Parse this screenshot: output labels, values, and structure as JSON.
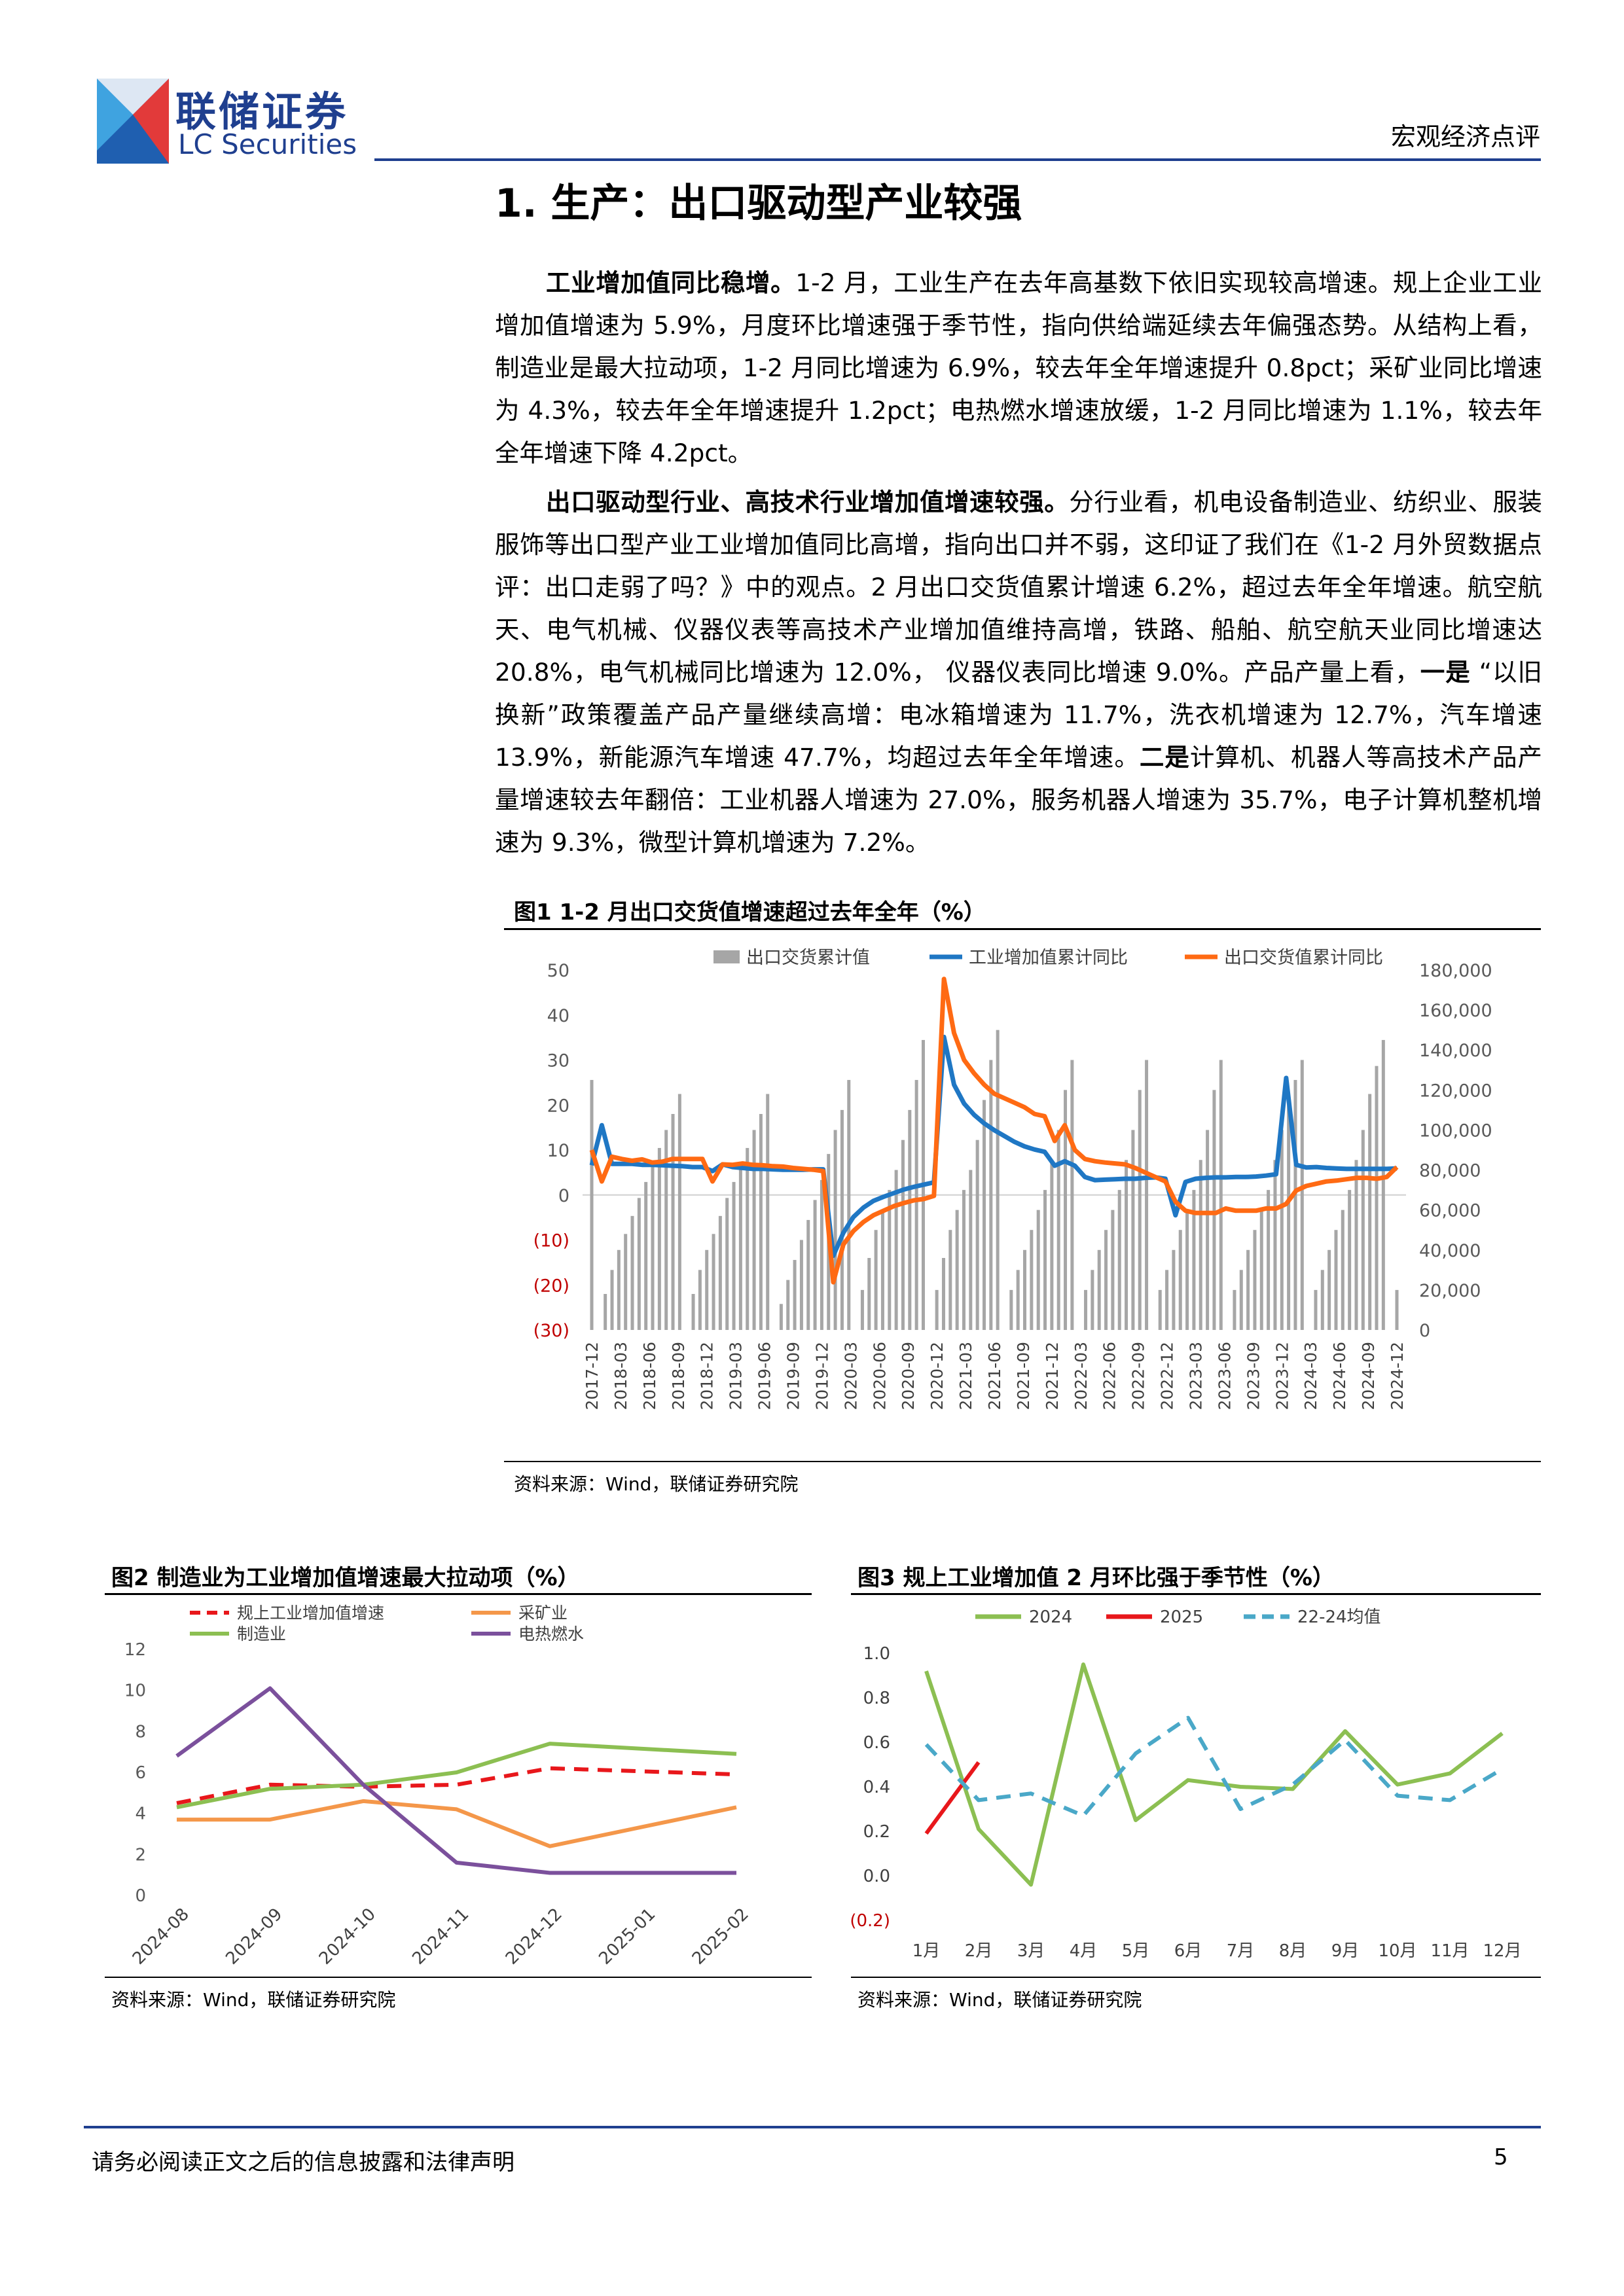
{
  "header": {
    "brand_cn": "联储证券",
    "brand_en": "LC Securities",
    "doc_type": "宏观经济点评"
  },
  "section_title": "1. 生产：出口驱动型产业较强",
  "paragraphs": [
    {
      "lead": "工业增加值同比稳增。",
      "body": "1-2 月，工业生产在去年高基数下依旧实现较高增速。规上企业工业增加值增速为 5.9%，月度环比增速强于季节性，指向供给端延续去年偏强态势。从结构上看，制造业是最大拉动项，1-2 月同比增速为 6.9%，较去年全年增速提升 0.8pct；采矿业同比增速为 4.3%，较去年全年增速提升 1.2pct；电热燃水增速放缓，1-2 月同比增速为 1.1%，较去年全年增速下降 4.2pct。"
    },
    {
      "lead": "出口驱动型行业、高技术行业增加值增速较强。",
      "body_1": "分行业看，机电设备制造业、纺织业、服装服饰等出口型产业工业增加值同比高增，指向出口并不弱，这印证了我们在《1-2 月外贸数据点评：出口走弱了吗？》中的观点。2 月出口交货值累计增速 6.2%，超过去年全年增速。航空航天、电气机械、仪器仪表等高技术产业增加值维持高增，铁路、船舶、航空航天业同比增速达 20.8%，电气机械同比增速为 12.0%， 仪器仪表同比增速 9.0%。产品产量上看，",
      "em1": "一是",
      "body_2": " “以旧换新”政策覆盖产品产量继续高增：电冰箱增速为 11.7%，洗衣机增速为 12.7%，汽车增速 13.9%，新能源汽车增速 47.7%，均超过去年全年增速。",
      "em2": "二是",
      "body_3": "计算机、机器人等高技术产品产量增速较去年翻倍：工业机器人增速为 27.0%，服务机器人增速为 35.7%，电子计算机整机增速为 9.3%，微型计算机增速为 7.2%。"
    }
  ],
  "figures": {
    "fig1": {
      "title": "图1  1-2 月出口交货值增速超过去年全年（%）",
      "source": "资料来源：Wind，联储证券研究院"
    },
    "fig2": {
      "title": "图2  制造业为工业增加值增速最大拉动项（%）",
      "source": "资料来源：Wind，联储证券研究院"
    },
    "fig3": {
      "title": "图3  规上工业增加值 2 月环比强于季节性（%）",
      "source": "资料来源：Wind，联储证券研究院"
    }
  },
  "footer": {
    "disclaimer": "请务必阅读正文之后的信息披露和法律声明",
    "page": "5"
  },
  "chart_data": [
    {
      "type": "bar+line",
      "left_yticks": [
        "50",
        "40",
        "30",
        "20",
        "10",
        "0",
        "(10)",
        "(20)",
        "(30)"
      ],
      "left_ylim": [
        -30,
        50
      ],
      "right_yticks": [
        "180,000",
        "160,000",
        "140,000",
        "120,000",
        "100,000",
        "80,000",
        "60,000",
        "40,000",
        "20,000",
        "0"
      ],
      "right_ylim": [
        0,
        180000
      ],
      "x_ticks": [
        "2017-12",
        "2018-03",
        "2018-06",
        "2018-09",
        "2018-12",
        "2019-03",
        "2019-06",
        "2019-09",
        "2019-12",
        "2020-03",
        "2020-06",
        "2020-09",
        "2020-12",
        "2021-03",
        "2021-06",
        "2021-09",
        "2021-12",
        "2022-03",
        "2022-06",
        "2022-09",
        "2022-12",
        "2023-03",
        "2023-06",
        "2023-09",
        "2023-12",
        "2024-03",
        "2024-06",
        "2024-09",
        "2024-12"
      ],
      "series": [
        {
          "name": "出口交货累计值",
          "kind": "bar",
          "color": "#a6a6a6",
          "values": [
            125000,
            0,
            18000,
            30000,
            40000,
            48000,
            57000,
            66000,
            74000,
            82000,
            91000,
            100000,
            108000,
            118000,
            0,
            18000,
            30000,
            40000,
            48000,
            57000,
            66000,
            74000,
            82000,
            91000,
            100000,
            108000,
            118000,
            0,
            13000,
            25000,
            35000,
            45000,
            55000,
            65000,
            75000,
            88000,
            100000,
            110000,
            125000,
            0,
            20000,
            36000,
            50000,
            60000,
            70000,
            80000,
            95000,
            110000,
            125000,
            145000,
            0,
            20000,
            36000,
            50000,
            60000,
            70000,
            80000,
            95000,
            115000,
            135000,
            150000,
            0,
            20000,
            30000,
            40000,
            50000,
            60000,
            70000,
            85000,
            100000,
            120000,
            135000,
            0,
            20000,
            30000,
            40000,
            50000,
            60000,
            70000,
            85000,
            100000,
            120000,
            135000,
            0,
            20000,
            30000,
            40000,
            50000,
            60000,
            70000,
            85000,
            100000,
            120000,
            135000,
            0,
            20000,
            30000,
            40000,
            50000,
            60000,
            70000,
            85000,
            100000,
            115000,
            125000,
            135000,
            0,
            20000,
            30000,
            40000,
            50000,
            60000,
            70000,
            85000,
            100000,
            118000,
            132000,
            145000,
            0,
            20000
          ]
        },
        {
          "name": "工业增加值累计同比",
          "kind": "line",
          "color": "#1f77c4",
          "values": [
            6.6,
            15.5,
            6.9,
            6.9,
            6.9,
            6.7,
            6.7,
            6.6,
            6.5,
            6.4,
            6.2,
            6.2,
            5.3,
            6.8,
            6.2,
            6.0,
            5.8,
            5.8,
            5.7,
            5.6,
            5.6,
            5.6,
            5.7,
            5.7,
            -13.5,
            -8.4,
            -4.9,
            -2.8,
            -1.3,
            -0.4,
            0.4,
            1.2,
            1.8,
            2.3,
            2.8,
            35.1,
            24.5,
            20.3,
            17.8,
            15.9,
            14.4,
            13.1,
            11.8,
            10.8,
            10.1,
            9.6,
            6.5,
            7.5,
            6.5,
            4.0,
            3.3,
            3.4,
            3.5,
            3.6,
            3.6,
            3.8,
            3.9,
            3.6,
            -4.5,
            2.9,
            3.6,
            3.8,
            3.9,
            3.9,
            4.0,
            4.0,
            4.1,
            4.3,
            4.6,
            26.0,
            6.7,
            6.1,
            6.2,
            6.0,
            5.9,
            5.8,
            5.8,
            5.8,
            5.8,
            5.8,
            5.9
          ]
        },
        {
          "name": "出口交货值累计同比",
          "kind": "line",
          "color": "#ff6a13",
          "values": [
            10.0,
            3.0,
            8.5,
            8.0,
            7.6,
            7.9,
            7.2,
            7.4,
            8.0,
            8.0,
            8.0,
            8.0,
            3.0,
            6.8,
            6.7,
            7.0,
            6.7,
            6.6,
            6.4,
            6.3,
            6.0,
            5.8,
            5.6,
            5.3,
            -19.4,
            -11.0,
            -8.0,
            -6.0,
            -4.5,
            -3.5,
            -2.5,
            -1.8,
            -1.2,
            -0.9,
            -0.2,
            48.0,
            36.0,
            30.0,
            27.0,
            24.5,
            22.5,
            21.5,
            20.5,
            19.5,
            18.0,
            17.5,
            12.0,
            15.5,
            10.0,
            8.0,
            7.5,
            7.2,
            7.0,
            6.8,
            6.0,
            5.0,
            4.0,
            3.0,
            -1.5,
            -3.5,
            -4.0,
            -4.0,
            -4.0,
            -3.0,
            -3.5,
            -3.5,
            -3.5,
            -3.0,
            -3.0,
            -2.0,
            1.0,
            2.0,
            2.5,
            3.0,
            3.2,
            3.5,
            3.8,
            3.8,
            3.6,
            4.0,
            6.2
          ]
        }
      ]
    },
    {
      "type": "line",
      "categories": [
        "2024-08",
        "2024-09",
        "2024-10",
        "2024-11",
        "2024-12",
        "2025-01",
        "2025-02"
      ],
      "ylim": [
        0,
        12
      ],
      "yticks": [
        "0",
        "2",
        "4",
        "6",
        "8",
        "10",
        "12"
      ],
      "series": [
        {
          "name": "规上工业增加值增速",
          "color": "#e8171b",
          "dash": true,
          "values": [
            4.5,
            5.4,
            5.3,
            5.4,
            6.2,
            null,
            5.9
          ]
        },
        {
          "name": "采矿业",
          "color": "#f4974a",
          "dash": false,
          "values": [
            3.7,
            3.7,
            4.6,
            4.2,
            2.4,
            null,
            4.3
          ]
        },
        {
          "name": "制造业",
          "color": "#8cbf52",
          "dash": false,
          "values": [
            4.3,
            5.2,
            5.4,
            6.0,
            7.4,
            null,
            6.9
          ]
        },
        {
          "name": "电热燃水",
          "color": "#7b509c",
          "dash": false,
          "values": [
            6.8,
            10.1,
            5.4,
            1.6,
            1.1,
            null,
            1.1
          ]
        }
      ]
    },
    {
      "type": "line",
      "categories": [
        "1月",
        "2月",
        "3月",
        "4月",
        "5月",
        "6月",
        "7月",
        "8月",
        "9月",
        "10月",
        "11月",
        "12月"
      ],
      "ylim": [
        -0.2,
        1.0
      ],
      "yticks": [
        "1.0",
        "0.8",
        "0.6",
        "0.4",
        "0.2",
        "0.0",
        "(0.2)"
      ],
      "series": [
        {
          "name": "2024",
          "color": "#8cbf52",
          "dash": false,
          "values": [
            0.92,
            0.21,
            -0.04,
            0.95,
            0.25,
            0.43,
            0.4,
            0.39,
            0.65,
            0.41,
            0.46,
            0.64
          ]
        },
        {
          "name": "2025",
          "color": "#e8171b",
          "dash": false,
          "values": [
            0.19,
            0.51,
            null,
            null,
            null,
            null,
            null,
            null,
            null,
            null,
            null,
            null
          ]
        },
        {
          "name": "22-24均值",
          "color": "#4aa8c8",
          "dash": true,
          "values": [
            0.59,
            0.34,
            0.37,
            0.27,
            0.55,
            0.71,
            0.3,
            0.41,
            0.61,
            0.36,
            0.34,
            0.48
          ]
        }
      ]
    }
  ]
}
